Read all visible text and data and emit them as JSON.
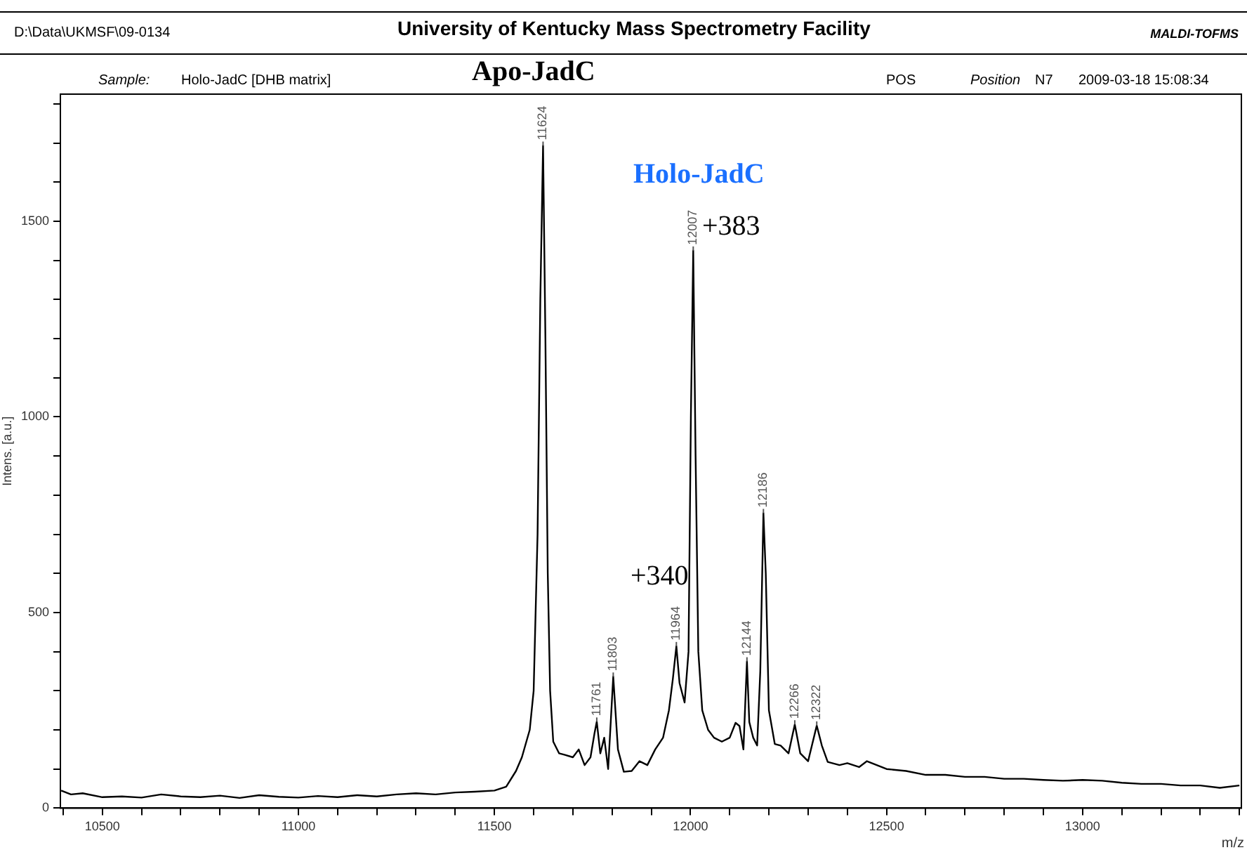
{
  "chart_data": {
    "type": "line",
    "title": "University of Kentucky Mass Spectrometry Facility",
    "xlabel": "m/z",
    "ylabel": "Intens. [a.u.]",
    "xlim": [
      10393,
      13405
    ],
    "ylim": [
      0,
      1825
    ],
    "xticks": [
      {
        "value": 10400,
        "label": null
      },
      10500,
      {
        "value": 10600,
        "label": null
      },
      {
        "value": 10700,
        "label": null
      },
      {
        "value": 10800,
        "label": null
      },
      {
        "value": 10900,
        "label": null
      },
      11000,
      {
        "value": 11100,
        "label": null
      },
      {
        "value": 11200,
        "label": null
      },
      {
        "value": 11300,
        "label": null
      },
      {
        "value": 11400,
        "label": null
      },
      11500,
      {
        "value": 11600,
        "label": null
      },
      {
        "value": 11700,
        "label": null
      },
      {
        "value": 11800,
        "label": null
      },
      {
        "value": 11900,
        "label": null
      },
      12000,
      {
        "value": 12100,
        "label": null
      },
      {
        "value": 12200,
        "label": null
      },
      {
        "value": 12300,
        "label": null
      },
      {
        "value": 12400,
        "label": null
      },
      12500,
      {
        "value": 12600,
        "label": null
      },
      {
        "value": 12700,
        "label": null
      },
      {
        "value": 12800,
        "label": null
      },
      {
        "value": 12900,
        "label": null
      },
      13000,
      {
        "value": 13100,
        "label": null
      },
      {
        "value": 13200,
        "label": null
      },
      {
        "value": 13300,
        "label": null
      },
      {
        "value": 13400,
        "label": null
      }
    ],
    "yticks": [
      0,
      {
        "value": 100,
        "label": null
      },
      {
        "value": 200,
        "label": null
      },
      {
        "value": 300,
        "label": null
      },
      {
        "value": 400,
        "label": null
      },
      500,
      {
        "value": 600,
        "label": null
      },
      {
        "value": 700,
        "label": null
      },
      {
        "value": 800,
        "label": null
      },
      {
        "value": 900,
        "label": null
      },
      1000,
      {
        "value": 1100,
        "label": null
      },
      {
        "value": 1200,
        "label": null
      },
      {
        "value": 1300,
        "label": null
      },
      {
        "value": 1400,
        "label": null
      },
      1500,
      {
        "value": 1600,
        "label": null
      },
      {
        "value": 1700,
        "label": null
      },
      {
        "value": 1800,
        "label": null
      }
    ],
    "grid": false,
    "legend": false,
    "marker": "none",
    "line_style": "solid",
    "series": [
      {
        "color": "#000000",
        "x": [
          10395,
          10420,
          10450,
          10500,
          10550,
          10600,
          10650,
          10700,
          10750,
          10800,
          10850,
          10900,
          10950,
          11000,
          11050,
          11100,
          11150,
          11200,
          11250,
          11300,
          11350,
          11400,
          11450,
          11500,
          11530,
          11555,
          11570,
          11590,
          11600,
          11610,
          11617,
          11624,
          11630,
          11636,
          11642,
          11650,
          11665,
          11680,
          11700,
          11715,
          11730,
          11745,
          11755,
          11761,
          11770,
          11780,
          11790,
          11803,
          11815,
          11830,
          11850,
          11870,
          11890,
          11910,
          11930,
          11945,
          11955,
          11964,
          11972,
          11985,
          11995,
          12001,
          12007,
          12013,
          12020,
          12030,
          12045,
          12060,
          12080,
          12100,
          12115,
          12125,
          12135,
          12144,
          12150,
          12160,
          12170,
          12178,
          12186,
          12192,
          12200,
          12215,
          12230,
          12250,
          12266,
          12280,
          12300,
          12322,
          12335,
          12350,
          12380,
          12400,
          12430,
          12450,
          12500,
          12550,
          12600,
          12650,
          12700,
          12750,
          12800,
          12850,
          12900,
          12950,
          13000,
          13050,
          13100,
          13150,
          13200,
          13250,
          13300,
          13350,
          13400
        ],
        "values": [
          45,
          35,
          38,
          28,
          30,
          27,
          35,
          30,
          28,
          32,
          26,
          33,
          29,
          27,
          31,
          28,
          33,
          30,
          35,
          38,
          35,
          40,
          42,
          45,
          55,
          95,
          130,
          200,
          300,
          700,
          1300,
          1693,
          1200,
          600,
          300,
          170,
          140,
          136,
          130,
          150,
          110,
          130,
          190,
          221,
          140,
          180,
          100,
          336,
          150,
          93,
          95,
          120,
          110,
          150,
          180,
          250,
          330,
          414,
          320,
          270,
          400,
          1000,
          1425,
          900,
          400,
          250,
          200,
          180,
          170,
          180,
          218,
          210,
          150,
          375,
          220,
          180,
          160,
          350,
          754,
          600,
          250,
          164,
          160,
          140,
          214,
          140,
          120,
          211,
          160,
          118,
          110,
          115,
          105,
          120,
          100,
          95,
          85,
          85,
          80,
          80,
          75,
          75,
          72,
          70,
          72,
          70,
          65,
          62,
          62,
          58,
          58,
          52,
          58
        ]
      }
    ],
    "annotations": [
      "D:\\Data\\UKMSF\\09-0134",
      "MALDI-TOFMS",
      "Sample:",
      "Holo-JadC  [DHB matrix]",
      "Apo-JadC",
      "POS",
      "Position",
      "N7",
      "2009-03-18 15:08:34",
      "Holo-JadC",
      "+383",
      "+340",
      {
        "text": "11624",
        "x": 11624,
        "y": 1693
      },
      {
        "text": "12007",
        "x": 12007,
        "y": 1425
      },
      {
        "text": "12186",
        "x": 12186,
        "y": 754
      },
      {
        "text": "11964",
        "x": 11964,
        "y": 414
      },
      {
        "text": "12144",
        "x": 12144,
        "y": 375
      },
      {
        "text": "11803",
        "x": 11803,
        "y": 336
      },
      {
        "text": "11761",
        "x": 11761,
        "y": 221
      },
      {
        "text": "12266",
        "x": 12266,
        "y": 214
      },
      {
        "text": "12322",
        "x": 12322,
        "y": 211
      }
    ]
  }
}
